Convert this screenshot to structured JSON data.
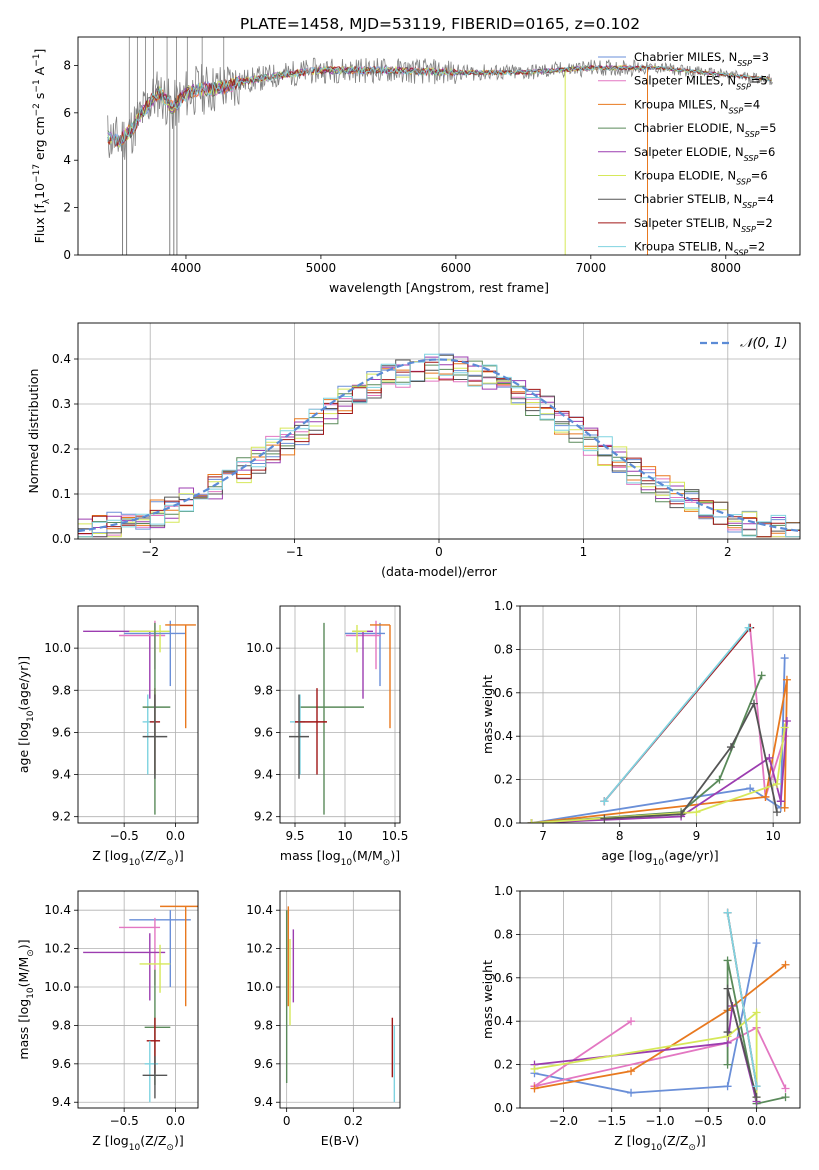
{
  "figure": {
    "title": "PLATE=1458, MJD=53119, FIBERID=0165, z=0.102"
  },
  "colors": {
    "chab_miles": "#6a8fd8",
    "salp_miles": "#e377c2",
    "krou_miles": "#e8791f",
    "chab_elodie": "#5a8a5a",
    "salp_elodie": "#9c3db0",
    "krou_elodie": "#d6e85a",
    "chab_stelib": "#555555",
    "salp_stelib": "#a01616",
    "krou_stelib": "#7fd3e0",
    "data": "#808080",
    "grid": "#b0b0b0",
    "gauss": "#5b8bd6"
  },
  "chart_data": [
    {
      "id": "spectrum",
      "type": "line",
      "xlabel": "wavelength [Angstrom, rest frame]",
      "ylabel": "Flux [f_λ10^-17 erg cm^-2 s^-1 A^-1]",
      "xlim": [
        3200,
        8550
      ],
      "ylim": [
        0,
        9.2
      ],
      "xticks": [
        4000,
        5000,
        6000,
        7000,
        8000
      ],
      "yticks": [
        0,
        2,
        4,
        6,
        8
      ],
      "grid": false,
      "legend": "top-right",
      "legend_entries": [
        {
          "name": "Chabrier MILES",
          "nssp": "3",
          "color_key": "chab_miles"
        },
        {
          "name": "Salpeter MILES",
          "nssp": "5",
          "color_key": "salp_miles"
        },
        {
          "name": "Kroupa MILES",
          "nssp": "4",
          "color_key": "krou_miles"
        },
        {
          "name": "Chabrier ELODIE",
          "nssp": "5",
          "color_key": "chab_elodie"
        },
        {
          "name": "Salpeter ELODIE",
          "nssp": "6",
          "color_key": "salp_elodie"
        },
        {
          "name": "Kroupa ELODIE",
          "nssp": "6",
          "color_key": "krou_elodie"
        },
        {
          "name": "Chabrier STELIB",
          "nssp": "4",
          "color_key": "chab_stelib"
        },
        {
          "name": "Salpeter STELIB",
          "nssp": "2",
          "color_key": "salp_stelib"
        },
        {
          "name": "Kroupa STELIB",
          "nssp": "2",
          "color_key": "krou_stelib"
        }
      ],
      "continuum": {
        "x": [
          3420,
          3500,
          3600,
          3700,
          3800,
          3900,
          4000,
          4100,
          4200,
          4300,
          4400,
          4500,
          4700,
          5000,
          5500,
          6000,
          6500,
          7000,
          7500,
          8000,
          8350
        ],
        "y": [
          5.0,
          4.8,
          5.3,
          6.2,
          6.9,
          6.2,
          6.8,
          7.0,
          7.0,
          7.1,
          7.3,
          7.4,
          7.6,
          7.8,
          7.8,
          7.7,
          7.7,
          7.9,
          7.9,
          7.6,
          7.4
        ]
      },
      "spikes": {
        "up": [
          3580,
          3640,
          3700,
          3760,
          3860,
          3930,
          4010,
          4120,
          4280
        ],
        "down": [
          3530,
          3560,
          3880,
          3910,
          3933,
          6810,
          7420
        ]
      }
    },
    {
      "id": "residuals",
      "type": "bar",
      "subtype": "step-histogram",
      "xlabel": "(data-model)/error",
      "ylabel": "Normed distribution",
      "xlim": [
        -2.5,
        2.5
      ],
      "ylim": [
        0,
        0.48
      ],
      "xticks": [
        -2,
        -1,
        0,
        1,
        2
      ],
      "yticks": [
        0.0,
        0.1,
        0.2,
        0.3,
        0.4
      ],
      "xtick_labels": [
        "−2",
        "−1",
        "0",
        "1",
        "2"
      ],
      "grid": true,
      "legend": "top-right",
      "gauss_label": "𝒩(0, 1)",
      "bin_width": 0.1,
      "bin_start": -2.5,
      "series": [
        {
          "color_key": "chab_miles",
          "seed": 1
        },
        {
          "color_key": "salp_miles",
          "seed": 2
        },
        {
          "color_key": "krou_miles",
          "seed": 3
        },
        {
          "color_key": "chab_elodie",
          "seed": 4
        },
        {
          "color_key": "salp_elodie",
          "seed": 5
        },
        {
          "color_key": "krou_elodie",
          "seed": 6
        },
        {
          "color_key": "chab_stelib",
          "seed": 7
        },
        {
          "color_key": "salp_stelib",
          "seed": 8
        },
        {
          "color_key": "krou_stelib",
          "seed": 9
        }
      ]
    },
    {
      "id": "age_vs_Z",
      "type": "scatter",
      "subtype": "errorbar",
      "xlabel": "Z [log10(Z/Z☉)]",
      "ylabel": "age [log10(age/yr)]",
      "xlim": [
        -0.95,
        0.22
      ],
      "ylim": [
        9.17,
        10.2
      ],
      "xticks": [
        -0.5,
        0.0
      ],
      "yticks": [
        9.2,
        9.4,
        9.6,
        9.8,
        10.0
      ],
      "xtick_labels": [
        "−0.5",
        "0.0"
      ],
      "grid": true,
      "points": [
        {
          "color_key": "salp_elodie",
          "x": -0.25,
          "xerr": [
            0.65,
            0.0
          ],
          "y": 10.08,
          "yerr": [
            0.32,
            0.0
          ]
        },
        {
          "color_key": "salp_miles",
          "x": -0.2,
          "xerr": [
            0.35,
            0.1
          ],
          "y": 10.06,
          "yerr": [
            0.16,
            0.07
          ]
        },
        {
          "color_key": "krou_elodie",
          "x": -0.15,
          "xerr": [
            0.3,
            0.1
          ],
          "y": 10.08,
          "yerr": [
            0.1,
            0.03
          ]
        },
        {
          "color_key": "chab_miles",
          "x": -0.05,
          "xerr": [
            0.45,
            0.15
          ],
          "y": 10.07,
          "yerr": [
            0.25,
            0.06
          ]
        },
        {
          "color_key": "krou_miles",
          "x": 0.1,
          "xerr": [
            0.2,
            0.1
          ],
          "y": 10.11,
          "yerr": [
            0.49,
            0.0
          ]
        },
        {
          "color_key": "krou_stelib",
          "x": -0.27,
          "xerr": [
            0.05,
            0.05
          ],
          "y": 9.65,
          "yerr": [
            0.25,
            0.13
          ]
        },
        {
          "color_key": "salp_stelib",
          "x": -0.2,
          "xerr": [
            0.05,
            0.05
          ],
          "y": 9.65,
          "yerr": [
            0.25,
            0.16
          ]
        },
        {
          "color_key": "chab_elodie",
          "x": -0.2,
          "xerr": [
            0.12,
            0.15
          ],
          "y": 9.72,
          "yerr": [
            0.51,
            0.4
          ]
        },
        {
          "color_key": "chab_stelib",
          "x": -0.2,
          "xerr": [
            0.12,
            0.12
          ],
          "y": 9.58,
          "yerr": [
            0.2,
            0.2
          ]
        }
      ]
    },
    {
      "id": "age_vs_mass",
      "type": "scatter",
      "subtype": "errorbar",
      "xlabel": "mass [log10(M/M☉)]",
      "ylabel": "",
      "xlim": [
        9.35,
        10.55
      ],
      "ylim": [
        9.17,
        10.2
      ],
      "xticks": [
        9.5,
        10.0,
        10.5
      ],
      "yticks": [
        9.2,
        9.4,
        9.6,
        9.8,
        10.0
      ],
      "grid": true,
      "points": [
        {
          "color_key": "chab_miles",
          "x": 10.35,
          "xerr": [
            0.35,
            0.05
          ],
          "y": 10.07,
          "yerr": [
            0.25,
            0.05
          ]
        },
        {
          "color_key": "salp_miles",
          "x": 10.31,
          "xerr": [
            0.3,
            0.05
          ],
          "y": 10.06,
          "yerr": [
            0.16,
            0.07
          ]
        },
        {
          "color_key": "krou_miles",
          "x": 10.45,
          "xerr": [
            0.2,
            0.0
          ],
          "y": 10.11,
          "yerr": [
            0.49,
            0.0
          ]
        },
        {
          "color_key": "salp_elodie",
          "x": 10.18,
          "xerr": [
            0.1,
            0.1
          ],
          "y": 10.08,
          "yerr": [
            0.32,
            0.0
          ]
        },
        {
          "color_key": "krou_elodie",
          "x": 10.12,
          "xerr": [
            0.05,
            0.1
          ],
          "y": 10.08,
          "yerr": [
            0.1,
            0.03
          ]
        },
        {
          "color_key": "chab_elodie",
          "x": 9.79,
          "xerr": [
            0.25,
            0.4
          ],
          "y": 9.72,
          "yerr": [
            0.51,
            0.4
          ]
        },
        {
          "color_key": "krou_stelib",
          "x": 9.55,
          "xerr": [
            0.1,
            0.05
          ],
          "y": 9.65,
          "yerr": [
            0.25,
            0.13
          ]
        },
        {
          "color_key": "salp_stelib",
          "x": 9.72,
          "xerr": [
            0.22,
            0.1
          ],
          "y": 9.65,
          "yerr": [
            0.25,
            0.16
          ]
        },
        {
          "color_key": "chab_stelib",
          "x": 9.54,
          "xerr": [
            0.1,
            0.1
          ],
          "y": 9.58,
          "yerr": [
            0.2,
            0.2
          ]
        }
      ]
    },
    {
      "id": "weight_vs_age",
      "type": "line",
      "xlabel": "age [log10(age/yr)]",
      "ylabel": "mass weight",
      "xlim": [
        6.7,
        10.35
      ],
      "ylim": [
        0,
        1.0
      ],
      "xticks": [
        7,
        8,
        9,
        10
      ],
      "yticks": [
        0.0,
        0.2,
        0.4,
        0.6,
        0.8,
        1.0
      ],
      "grid": true,
      "series": [
        {
          "color_key": "chab_miles",
          "x": [
            6.85,
            9.7,
            10.1,
            10.15,
            10.1
          ],
          "y": [
            0.0,
            0.16,
            0.07,
            0.76,
            0.1
          ]
        },
        {
          "color_key": "salp_miles",
          "x": [
            7.8,
            9.7,
            9.9,
            10.15
          ],
          "y": [
            0.1,
            0.9,
            0.12,
            0.4
          ]
        },
        {
          "color_key": "krou_miles",
          "x": [
            6.85,
            9.9,
            10.18,
            10.15
          ],
          "y": [
            0.0,
            0.12,
            0.66,
            0.07
          ]
        },
        {
          "color_key": "chab_elodie",
          "x": [
            6.85,
            8.8,
            9.3,
            9.85
          ],
          "y": [
            0.0,
            0.05,
            0.2,
            0.68
          ]
        },
        {
          "color_key": "salp_elodie",
          "x": [
            6.85,
            8.8,
            9.95,
            10.1,
            10.18
          ],
          "y": [
            0.0,
            0.03,
            0.3,
            0.1,
            0.47
          ]
        },
        {
          "color_key": "krou_elodie",
          "x": [
            6.85,
            9.0,
            10.05,
            10.15
          ],
          "y": [
            0.0,
            0.05,
            0.18,
            0.44
          ]
        },
        {
          "color_key": "chab_stelib",
          "x": [
            7.8,
            8.8,
            9.45,
            9.75,
            10.05
          ],
          "y": [
            0.02,
            0.04,
            0.35,
            0.55,
            0.05
          ]
        },
        {
          "color_key": "salp_stelib",
          "x": [
            7.8,
            9.7
          ],
          "y": [
            0.1,
            0.9
          ]
        },
        {
          "color_key": "krou_stelib",
          "x": [
            7.8,
            9.68
          ],
          "y": [
            0.1,
            0.9
          ]
        }
      ]
    },
    {
      "id": "mass_vs_Z",
      "type": "scatter",
      "subtype": "errorbar",
      "xlabel": "Z [log10(Z/Z☉)]",
      "ylabel": "mass [log10(M/M☉)]",
      "xlim": [
        -0.95,
        0.22
      ],
      "ylim": [
        9.37,
        10.5
      ],
      "xticks": [
        -0.5,
        0.0
      ],
      "yticks": [
        9.4,
        9.6,
        9.8,
        10.0,
        10.2,
        10.4
      ],
      "xtick_labels": [
        "−0.5",
        "0.0"
      ],
      "grid": true,
      "points": [
        {
          "color_key": "chab_miles",
          "x": -0.05,
          "xerr": [
            0.4,
            0.2
          ],
          "y": 10.35,
          "yerr": [
            0.35,
            0.05
          ]
        },
        {
          "color_key": "krou_miles",
          "x": 0.1,
          "xerr": [
            0.25,
            0.12
          ],
          "y": 10.42,
          "yerr": [
            0.52,
            0.0
          ]
        },
        {
          "color_key": "salp_miles",
          "x": -0.2,
          "xerr": [
            0.35,
            0.05
          ],
          "y": 10.31,
          "yerr": [
            0.3,
            0.05
          ]
        },
        {
          "color_key": "salp_elodie",
          "x": -0.25,
          "xerr": [
            0.65,
            0.15
          ],
          "y": 10.18,
          "yerr": [
            0.25,
            0.1
          ]
        },
        {
          "color_key": "krou_elodie",
          "x": -0.15,
          "xerr": [
            0.2,
            0.1
          ],
          "y": 10.12,
          "yerr": [
            0.15,
            0.1
          ]
        },
        {
          "color_key": "chab_elodie",
          "x": -0.2,
          "xerr": [
            0.1,
            0.15
          ],
          "y": 9.79,
          "yerr": [
            0.3,
            0.3
          ]
        },
        {
          "color_key": "salp_stelib",
          "x": -0.2,
          "xerr": [
            0.08,
            0.05
          ],
          "y": 9.72,
          "yerr": [
            0.17,
            0.12
          ]
        },
        {
          "color_key": "krou_stelib",
          "x": -0.25,
          "xerr": [
            0.05,
            0.08
          ],
          "y": 9.6,
          "yerr": [
            0.2,
            0.12
          ]
        },
        {
          "color_key": "chab_stelib",
          "x": -0.2,
          "xerr": [
            0.12,
            0.12
          ],
          "y": 9.54,
          "yerr": [
            0.12,
            0.1
          ]
        }
      ]
    },
    {
      "id": "mass_vs_ebv",
      "type": "scatter",
      "subtype": "errorbar",
      "xlabel": "E(B-V)",
      "ylabel": "",
      "xlim": [
        -0.02,
        0.34
      ],
      "ylim": [
        9.37,
        10.5
      ],
      "xticks": [
        0.0,
        0.2
      ],
      "yticks": [
        9.4,
        9.6,
        9.8,
        10.0,
        10.2,
        10.4
      ],
      "grid": true,
      "points": [
        {
          "color_key": "krou_miles",
          "x": 0.005,
          "y": 10.42,
          "yerr": [
            0.52,
            0.0
          ]
        },
        {
          "color_key": "chab_elodie",
          "x": 0.0,
          "y": 10.3,
          "yerr": [
            0.8,
            0.1
          ]
        },
        {
          "color_key": "krou_elodie",
          "x": 0.01,
          "y": 10.15,
          "yerr": [
            0.35,
            0.1
          ]
        },
        {
          "color_key": "salp_elodie",
          "x": 0.02,
          "y": 10.12,
          "yerr": [
            0.2,
            0.18
          ]
        },
        {
          "color_key": "salp_stelib",
          "x": 0.317,
          "y": 9.69,
          "yerr": [
            0.16,
            0.15
          ]
        },
        {
          "color_key": "krou_stelib",
          "x": 0.323,
          "y": 9.58,
          "yerr": [
            0.18,
            0.22
          ]
        }
      ]
    },
    {
      "id": "weight_vs_Z",
      "type": "line",
      "xlabel": "Z [log10(Z/Z☉)]",
      "ylabel": "mass weight",
      "xlim": [
        -2.45,
        0.45
      ],
      "ylim": [
        0,
        1.0
      ],
      "xticks": [
        -2.0,
        -1.5,
        -1.0,
        -0.5,
        0.0
      ],
      "yticks": [
        0.0,
        0.2,
        0.4,
        0.6,
        0.8,
        1.0
      ],
      "xtick_labels": [
        "−2.0",
        "−1.5",
        "−1.0",
        "−0.5",
        "0.0"
      ],
      "grid": true,
      "series": [
        {
          "color_key": "chab_miles",
          "x": [
            -2.3,
            -1.3,
            -0.3,
            0.0
          ],
          "y": [
            0.16,
            0.07,
            0.1,
            0.76
          ]
        },
        {
          "color_key": "salp_miles",
          "x": [
            -2.3,
            -1.3,
            -2.3,
            -0.3,
            0.0,
            0.3
          ],
          "y": [
            0.1,
            0.4,
            0.1,
            0.3,
            0.37,
            0.09
          ]
        },
        {
          "color_key": "krou_miles",
          "x": [
            -2.3,
            -1.3,
            -0.3,
            0.3
          ],
          "y": [
            0.09,
            0.17,
            0.45,
            0.66
          ]
        },
        {
          "color_key": "chab_elodie",
          "x": [
            -0.3,
            -0.3,
            0.0,
            0.3
          ],
          "y": [
            0.2,
            0.68,
            0.02,
            0.05
          ]
        },
        {
          "color_key": "salp_elodie",
          "x": [
            -2.3,
            -0.3,
            -0.25,
            0.0
          ],
          "y": [
            0.2,
            0.3,
            0.47,
            0.03
          ]
        },
        {
          "color_key": "krou_elodie",
          "x": [
            -2.3,
            -0.3,
            0.0,
            0.0
          ],
          "y": [
            0.18,
            0.33,
            0.44,
            0.05
          ]
        },
        {
          "color_key": "chab_stelib",
          "x": [
            -0.3,
            -0.3,
            0.0
          ],
          "y": [
            0.35,
            0.55,
            0.05
          ]
        },
        {
          "color_key": "salp_stelib",
          "x": [
            -0.3,
            0.0
          ],
          "y": [
            0.9,
            0.1
          ]
        },
        {
          "color_key": "krou_stelib",
          "x": [
            -0.3,
            0.0
          ],
          "y": [
            0.9,
            0.1
          ]
        }
      ]
    }
  ]
}
